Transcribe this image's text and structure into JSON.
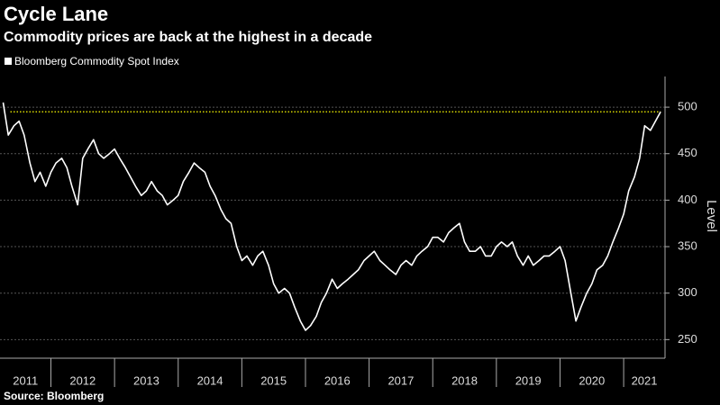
{
  "chart_data": {
    "type": "line",
    "title": "Cycle Lane",
    "subtitle": "Commodity prices are back at the highest in a decade",
    "y_label": "Level",
    "source": "Source: Bloomberg",
    "x": [
      2011.25,
      2011.33,
      2011.42,
      2011.5,
      2011.58,
      2011.67,
      2011.75,
      2011.83,
      2011.92,
      2012.0,
      2012.08,
      2012.17,
      2012.25,
      2012.33,
      2012.42,
      2012.5,
      2012.58,
      2012.67,
      2012.75,
      2012.83,
      2012.92,
      2013.0,
      2013.08,
      2013.17,
      2013.25,
      2013.33,
      2013.42,
      2013.5,
      2013.58,
      2013.67,
      2013.75,
      2013.83,
      2013.92,
      2014.0,
      2014.08,
      2014.17,
      2014.25,
      2014.33,
      2014.42,
      2014.5,
      2014.58,
      2014.67,
      2014.75,
      2014.83,
      2014.92,
      2015.0,
      2015.08,
      2015.17,
      2015.25,
      2015.33,
      2015.42,
      2015.5,
      2015.58,
      2015.67,
      2015.75,
      2015.83,
      2015.92,
      2016.0,
      2016.08,
      2016.17,
      2016.25,
      2016.33,
      2016.42,
      2016.5,
      2016.58,
      2016.67,
      2016.75,
      2016.83,
      2016.92,
      2017.0,
      2017.08,
      2017.17,
      2017.25,
      2017.33,
      2017.42,
      2017.5,
      2017.58,
      2017.67,
      2017.75,
      2017.83,
      2017.92,
      2018.0,
      2018.08,
      2018.17,
      2018.25,
      2018.33,
      2018.42,
      2018.5,
      2018.58,
      2018.67,
      2018.75,
      2018.83,
      2018.92,
      2019.0,
      2019.08,
      2019.17,
      2019.25,
      2019.33,
      2019.42,
      2019.5,
      2019.58,
      2019.67,
      2019.75,
      2019.83,
      2019.92,
      2020.0,
      2020.08,
      2020.17,
      2020.25,
      2020.33,
      2020.42,
      2020.5,
      2020.58,
      2020.67,
      2020.75,
      2020.83,
      2020.92,
      2021.0,
      2021.08,
      2021.17,
      2021.25,
      2021.33,
      2021.42,
      2021.5,
      2021.58
    ],
    "series": [
      {
        "name": "Bloomberg Commodity Spot Index",
        "color": "#ffffff",
        "values": [
          505,
          470,
          480,
          485,
          470,
          440,
          420,
          430,
          415,
          430,
          440,
          445,
          435,
          415,
          395,
          445,
          455,
          465,
          450,
          445,
          450,
          455,
          445,
          435,
          425,
          415,
          405,
          410,
          420,
          410,
          405,
          395,
          400,
          405,
          420,
          430,
          440,
          435,
          430,
          415,
          405,
          390,
          380,
          375,
          350,
          335,
          340,
          330,
          340,
          345,
          330,
          310,
          300,
          305,
          300,
          285,
          270,
          260,
          265,
          275,
          290,
          300,
          315,
          305,
          310,
          315,
          320,
          325,
          335,
          340,
          345,
          335,
          330,
          325,
          320,
          330,
          335,
          330,
          340,
          345,
          350,
          360,
          360,
          355,
          365,
          370,
          375,
          355,
          345,
          345,
          350,
          340,
          340,
          350,
          355,
          350,
          355,
          340,
          330,
          340,
          330,
          335,
          340,
          340,
          345,
          350,
          335,
          300,
          270,
          285,
          300,
          310,
          325,
          330,
          340,
          355,
          370,
          385,
          410,
          425,
          445,
          480,
          475,
          485,
          495
        ]
      }
    ],
    "xlim": [
      2011.2,
      2021.65
    ],
    "xticks": [
      {
        "value": 2011,
        "label": "2011"
      },
      {
        "value": 2012,
        "label": "2012"
      },
      {
        "value": 2013,
        "label": "2013"
      },
      {
        "value": 2014,
        "label": "2014"
      },
      {
        "value": 2015,
        "label": "2015"
      },
      {
        "value": 2016,
        "label": "2016"
      },
      {
        "value": 2017,
        "label": "2017"
      },
      {
        "value": 2018,
        "label": "2018"
      },
      {
        "value": 2019,
        "label": "2019"
      },
      {
        "value": 2020,
        "label": "2020"
      },
      {
        "value": 2021,
        "label": "2021"
      }
    ],
    "ylim": [
      230,
      533
    ],
    "yticks": [
      250,
      300,
      350,
      400,
      450,
      500
    ],
    "grid": true,
    "reference_line": {
      "value": 495,
      "color": "#d8d800"
    }
  }
}
